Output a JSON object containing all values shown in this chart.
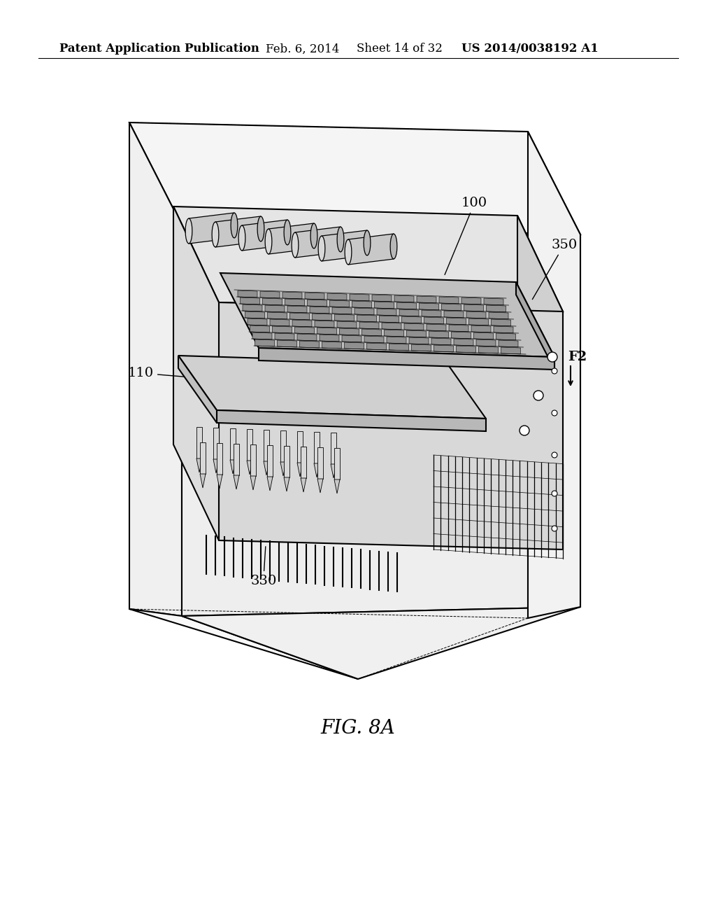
{
  "background_color": "#ffffff",
  "line_color": "#000000",
  "fill_light": "#ebebeb",
  "fill_mid": "#d8d8d8",
  "fill_dark": "#c0c0c0",
  "fill_shadow": "#b0b0b0",
  "header_text": "Patent Application Publication",
  "header_date": "Feb. 6, 2014",
  "header_sheet": "Sheet 14 of 32",
  "header_patent": "US 2014/0038192 A1",
  "fig_label": "FIG. 8A",
  "label_100": "100",
  "label_110": "110",
  "label_330": "330",
  "label_350": "350",
  "label_F2": "F2",
  "fig_fontsize": 20,
  "header_fontsize": 12,
  "annotation_fontsize": 14
}
